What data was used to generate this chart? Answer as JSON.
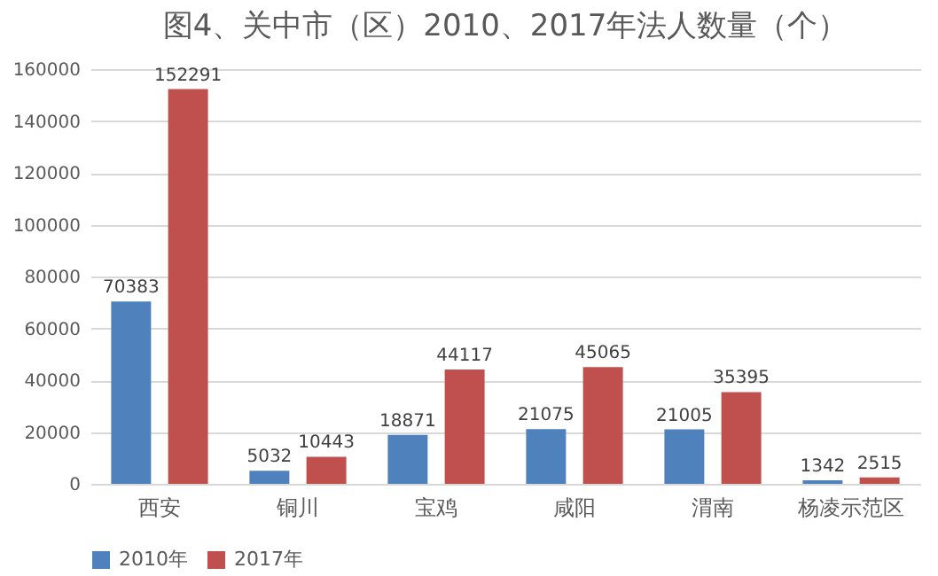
{
  "chart_data": {
    "type": "bar",
    "title": "图4、关中市（区）2010、2017年法人数量（个）",
    "categories": [
      "西安",
      "铜川",
      "宝鸡",
      "咸阳",
      "渭南",
      "杨凌示范区"
    ],
    "series": [
      {
        "name": "2010年",
        "color": "#4f81bd",
        "values": [
          70383,
          5032,
          18871,
          21075,
          21005,
          1342
        ]
      },
      {
        "name": "2017年",
        "color": "#c0504d",
        "values": [
          152291,
          10443,
          44117,
          45065,
          35395,
          2515
        ]
      }
    ],
    "ylim": [
      0,
      160000
    ],
    "yticks": [
      0,
      20000,
      40000,
      60000,
      80000,
      100000,
      120000,
      140000,
      160000
    ],
    "grid": "y",
    "legend": "bottom",
    "data_labels": true
  }
}
